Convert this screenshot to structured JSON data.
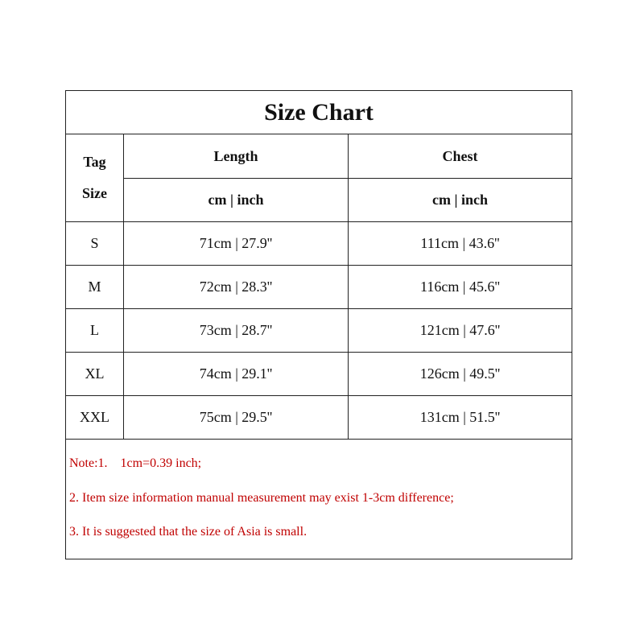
{
  "title": "Size Chart",
  "header": {
    "tag_size": [
      "Tag",
      "Size"
    ],
    "columns": [
      "Length",
      "Chest"
    ],
    "units": [
      "cm | inch",
      "cm | inch"
    ]
  },
  "rows": [
    {
      "size": "S",
      "length": "71cm | 27.9''",
      "chest": "111cm | 43.6''"
    },
    {
      "size": "M",
      "length": "72cm | 28.3''",
      "chest": "116cm | 45.6''"
    },
    {
      "size": "L",
      "length": "73cm | 28.7''",
      "chest": "121cm | 47.6''"
    },
    {
      "size": "XL",
      "length": "74cm | 29.1''",
      "chest": "126cm | 49.5''"
    },
    {
      "size": "XXL",
      "length": "75cm | 29.5''",
      "chest": "131cm | 51.5''"
    }
  ],
  "notes": [
    "Note:1.    1cm=0.39 inch;",
    "2.  Item size information manual measurement may exist 1-3cm difference;",
    "3.  It is suggested that the size of Asia is small."
  ],
  "colors": {
    "note_text": "#c00000",
    "border": "#222222"
  }
}
